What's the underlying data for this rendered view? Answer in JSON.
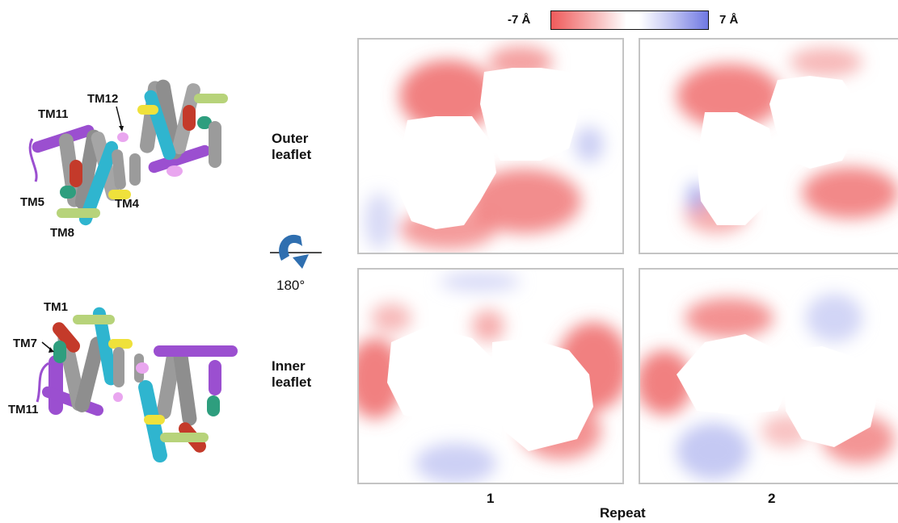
{
  "colorbar": {
    "min_label": "-7 Å",
    "max_label": "7 Å",
    "colors": [
      "#ef5a5a",
      "#ffffff",
      "#6f78e2"
    ]
  },
  "rows": [
    {
      "label": "Outer\nleaflet"
    },
    {
      "label": "Inner\nleaflet"
    }
  ],
  "columns": [
    {
      "label": "1"
    },
    {
      "label": "2"
    }
  ],
  "x_axis_label": "Repeat",
  "rotation": {
    "label": "180°"
  },
  "structure_top": {
    "labels": [
      "TM11",
      "TM12",
      "TM5",
      "TM4",
      "TM8"
    ]
  },
  "structure_bottom": {
    "labels": [
      "TM1",
      "TM7",
      "TM11"
    ]
  },
  "helix_colors": {
    "gray": "#9b9b9b",
    "purple": "#9b4fd0",
    "cyan": "#2fb5cf",
    "red": "#c43a2a",
    "teal": "#2e9e7e",
    "yellow": "#efe13b",
    "green": "#b7d37a",
    "pink": "#e9a6ef"
  }
}
